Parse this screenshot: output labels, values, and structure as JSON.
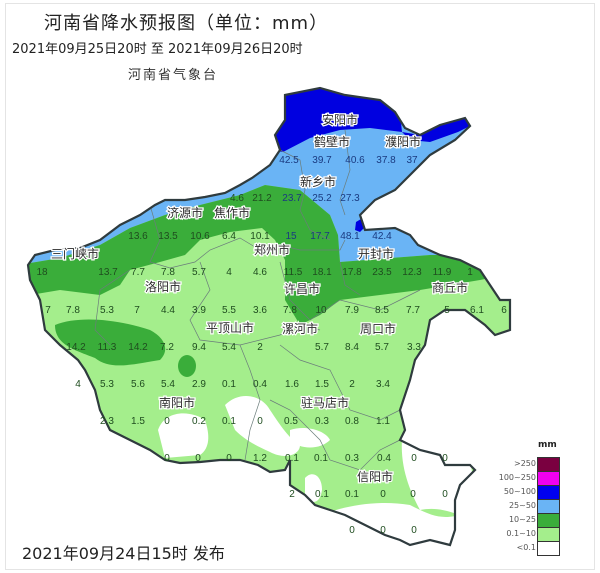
{
  "header": {
    "title": "河南省降水预报图（单位：mm）",
    "period": "2021年09月25日20时  至  2021年09月26日20时",
    "agency": "河南省气象台"
  },
  "footer": {
    "issued": "2021年09月24日15时 发布"
  },
  "legend": {
    "unit": "mm",
    "items": [
      {
        "label": ">250",
        "color": "#7a0040"
      },
      {
        "label": "100~250",
        "color": "#f000f0"
      },
      {
        "label": "50~100",
        "color": "#0000f0"
      },
      {
        "label": "25~50",
        "color": "#6ab4f5"
      },
      {
        "label": "10~25",
        "color": "#3aad3a"
      },
      {
        "label": "0.1~10",
        "color": "#a4ee8c"
      },
      {
        "label": "<0.1",
        "color": "#ffffff"
      }
    ]
  },
  "cities": [
    "安阳市",
    "鹤壁市",
    "濮阳市",
    "新乡市",
    "济源市",
    "焦作市",
    "郑州市",
    "开封市",
    "三门峡市",
    "洛阳市",
    "商丘市",
    "许昌市",
    "平顶山市",
    "漯河市",
    "周口市",
    "南阳市",
    "驻马店市",
    "信阳市"
  ],
  "rainfall_values": [
    "42.5",
    "39.7",
    "40.6",
    "37.8",
    "37",
    "4.6",
    "21.2",
    "23.7",
    "25.2",
    "27.3",
    "13.6",
    "13.5",
    "10.6",
    "6.4",
    "10.1",
    "15",
    "17.7",
    "48.1",
    "42.4",
    "18",
    "13.7",
    "7.7",
    "7.8",
    "5.7",
    "4",
    "4.6",
    "11.5",
    "18.1",
    "17.8",
    "23.5",
    "12.3",
    "11.9",
    "1",
    "7",
    "7.8",
    "5.3",
    "7",
    "4.4",
    "3.9",
    "5.5",
    "3.6",
    "7.8",
    "10",
    "7.9",
    "8.5",
    "7.7",
    "5",
    "6.1",
    "6",
    "14.2",
    "11.3",
    "14.2",
    "7.2",
    "9.4",
    "5.4",
    "2",
    "5.7",
    "8.4",
    "5.7",
    "3.3",
    "4",
    "5.3",
    "5.6",
    "5.4",
    "2.9",
    "0.1",
    "0.4",
    "1.6",
    "1.5",
    "2",
    "3.4",
    "2.3",
    "1.5",
    "0",
    "0.2",
    "0.1",
    "0",
    "0.5",
    "0.3",
    "0.8",
    "1.1",
    "0",
    "0",
    "0",
    "1.2",
    "0.1",
    "0.1",
    "0.3",
    "0.4",
    "0",
    "0",
    "2",
    "0.1",
    "0.1",
    "0",
    "0",
    "0",
    "0",
    "0",
    "0"
  ]
}
